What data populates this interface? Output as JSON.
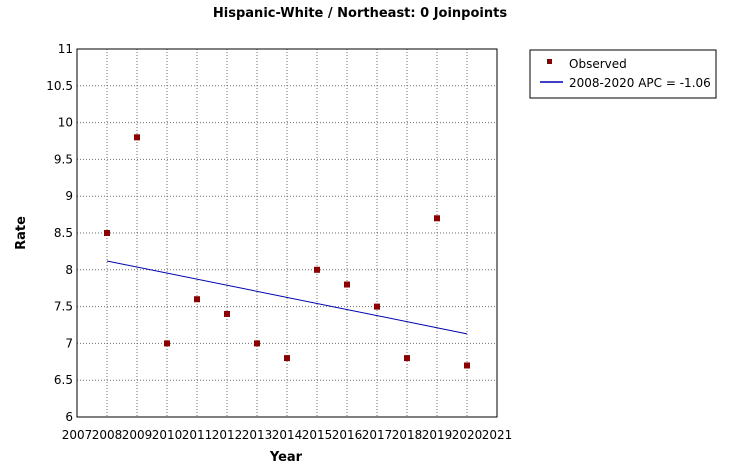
{
  "chart_data": {
    "type": "scatter",
    "title": "Hispanic-White / Northeast: 0 Joinpoints",
    "xlabel": "Year",
    "ylabel": "Rate",
    "xlim": [
      2007,
      2021
    ],
    "ylim": [
      6,
      11
    ],
    "x_ticks": [
      2007,
      2008,
      2009,
      2010,
      2011,
      2012,
      2013,
      2014,
      2015,
      2016,
      2017,
      2018,
      2019,
      2020,
      2021
    ],
    "y_ticks": [
      6,
      6.5,
      7,
      7.5,
      8,
      8.5,
      9,
      9.5,
      10,
      10.5,
      11
    ],
    "grid": true,
    "legend_position": "top-right, outside plot",
    "series": [
      {
        "name": "Observed",
        "kind": "points",
        "marker": "square",
        "color": "#8b0000",
        "x": [
          2008,
          2009,
          2010,
          2011,
          2012,
          2013,
          2014,
          2015,
          2016,
          2017,
          2018,
          2019,
          2020
        ],
        "y": [
          8.5,
          9.8,
          7.0,
          7.6,
          7.4,
          7.0,
          6.8,
          8.0,
          7.8,
          7.5,
          6.8,
          8.7,
          6.7
        ]
      },
      {
        "name": "2008-2020 APC  = -1.06",
        "kind": "line",
        "color": "#0000b0",
        "x": [
          2008,
          2020
        ],
        "y": [
          8.12,
          7.13
        ]
      }
    ]
  }
}
